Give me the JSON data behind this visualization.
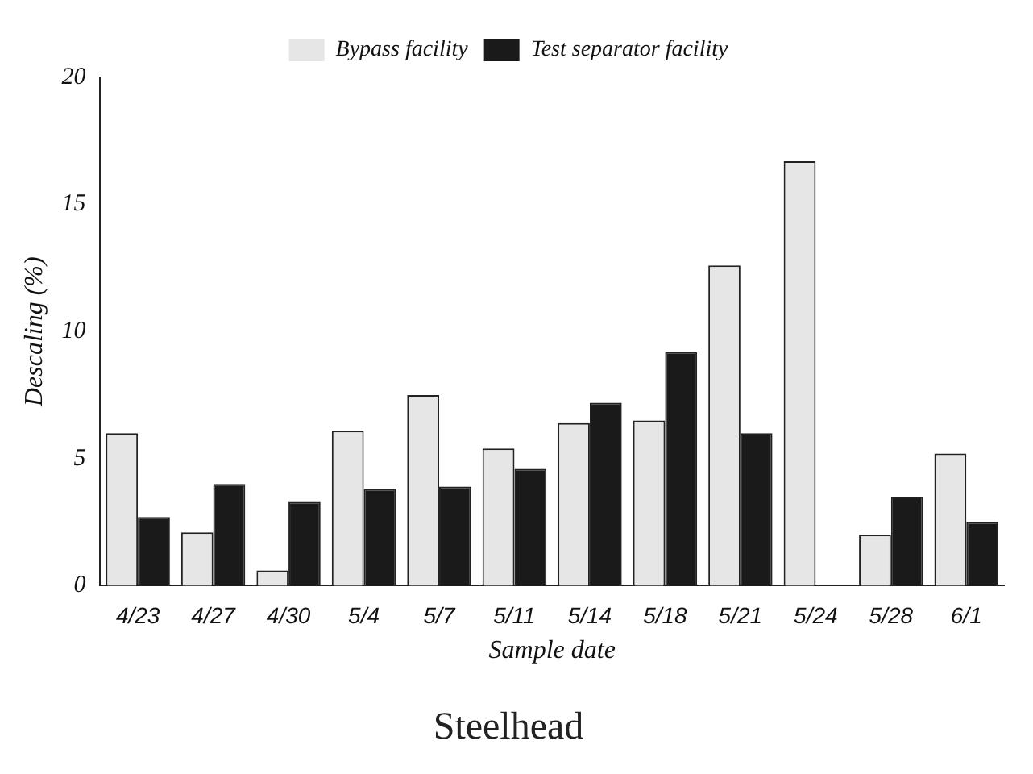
{
  "chart_data": {
    "type": "bar",
    "title": "Steelhead",
    "xlabel": "Sample date",
    "ylabel": "Descaling (%)",
    "categories": [
      "4/23",
      "4/27",
      "4/30",
      "5/4",
      "5/7",
      "5/11",
      "5/14",
      "5/18",
      "5/21",
      "5/24",
      "5/28",
      "6/1"
    ],
    "series": [
      {
        "name": "Bypass facility",
        "color": "#e6e6e6",
        "values": [
          6.0,
          2.1,
          0.6,
          6.1,
          7.5,
          5.4,
          6.4,
          6.5,
          12.6,
          16.7,
          2.0,
          5.2
        ]
      },
      {
        "name": "Test separator facility",
        "color": "#1a1a1a",
        "values": [
          2.7,
          4.0,
          3.3,
          3.8,
          3.9,
          4.6,
          7.2,
          9.2,
          6.0,
          null,
          3.5,
          2.5
        ]
      }
    ],
    "ylim": [
      0,
      20
    ],
    "yticks": [
      0,
      5,
      10,
      15,
      20
    ],
    "grid": false,
    "legend": "top"
  }
}
